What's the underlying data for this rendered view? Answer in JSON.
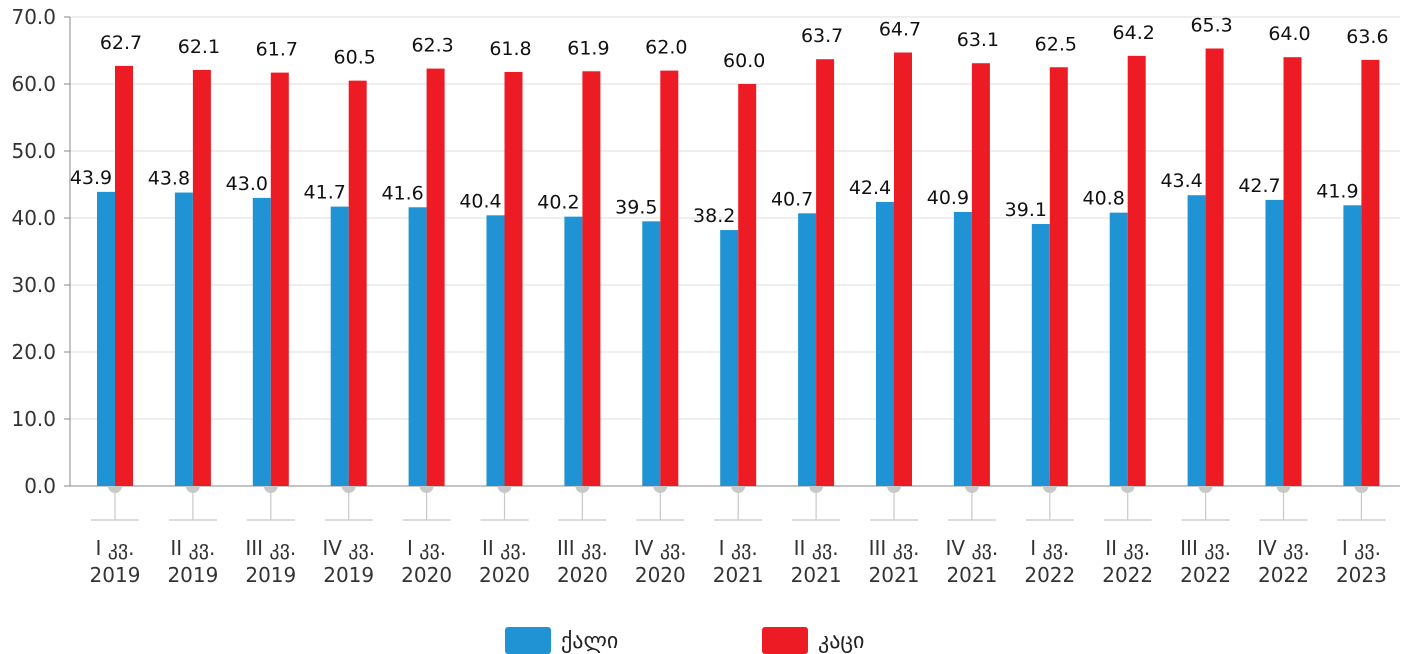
{
  "chart_data": {
    "type": "bar",
    "categories": [
      [
        "I კვ.",
        "2019"
      ],
      [
        "II კვ.",
        "2019"
      ],
      [
        "III კვ.",
        "2019"
      ],
      [
        "IV კვ.",
        "2019"
      ],
      [
        "I კვ.",
        "2020"
      ],
      [
        "II კვ.",
        "2020"
      ],
      [
        "III კვ.",
        "2020"
      ],
      [
        "IV კვ.",
        "2020"
      ],
      [
        "I კვ.",
        "2021"
      ],
      [
        "II კვ.",
        "2021"
      ],
      [
        "III კვ.",
        "2021"
      ],
      [
        "IV კვ.",
        "2021"
      ],
      [
        "I კვ.",
        "2022"
      ],
      [
        "II კვ.",
        "2022"
      ],
      [
        "III კვ.",
        "2022"
      ],
      [
        "IV კვ.",
        "2022"
      ],
      [
        "I კვ.",
        "2023"
      ]
    ],
    "series": [
      {
        "name": "ქალი",
        "color": "#1f93d3",
        "values": [
          43.9,
          43.8,
          43.0,
          41.7,
          41.6,
          40.4,
          40.2,
          39.5,
          38.2,
          40.7,
          42.4,
          40.9,
          39.1,
          40.8,
          43.4,
          42.7,
          41.9
        ]
      },
      {
        "name": "კაცი",
        "color": "#ed1c24",
        "values": [
          62.7,
          62.1,
          61.7,
          60.5,
          62.3,
          61.8,
          61.9,
          62.0,
          60.0,
          63.7,
          64.7,
          63.1,
          62.5,
          64.2,
          65.3,
          64.0,
          63.6
        ]
      }
    ],
    "yticks": [
      "0.0",
      "10.0",
      "20.0",
      "30.0",
      "40.0",
      "50.0",
      "60.0",
      "70.0"
    ],
    "ylim": [
      0,
      70
    ],
    "grid": true,
    "legend": "bottom-center"
  }
}
